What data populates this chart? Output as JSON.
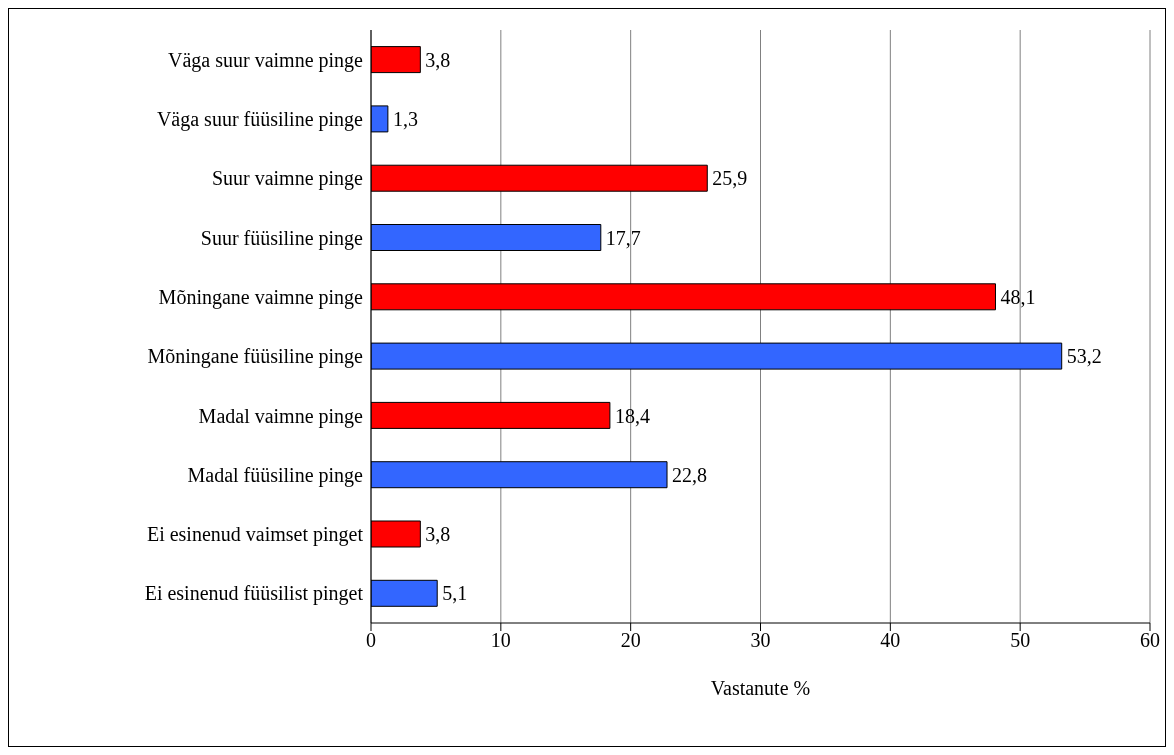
{
  "chart_data": {
    "type": "bar",
    "orientation": "horizontal",
    "xlabel": "Vastanute %",
    "categories": [
      "Väga suur vaimne pinge",
      "Väga suur füüsiline pinge",
      "Suur vaimne pinge",
      "Suur füüsiline pinge",
      "Mõningane vaimne pinge",
      "Mõningane füüsiline pinge",
      "Madal vaimne pinge",
      "Madal füüsiline pinge",
      "Ei esinenud vaimset pinget",
      "Ei esinenud füüsilist pinget"
    ],
    "values": [
      3.8,
      1.3,
      25.9,
      17.7,
      48.1,
      53.2,
      18.4,
      22.8,
      3.8,
      5.1
    ],
    "value_labels": [
      "3,8",
      "1,3",
      "25,9",
      "17,7",
      "48,1",
      "53,2",
      "18,4",
      "22,8",
      "3,8",
      "5,1"
    ],
    "colors": [
      "#ff0000",
      "#3366ff",
      "#ff0000",
      "#3366ff",
      "#ff0000",
      "#3366ff",
      "#ff0000",
      "#3366ff",
      "#ff0000",
      "#3366ff"
    ],
    "xlim": [
      0,
      60
    ],
    "xticks": [
      0,
      10,
      20,
      30,
      40,
      50,
      60
    ],
    "grid": "x"
  }
}
